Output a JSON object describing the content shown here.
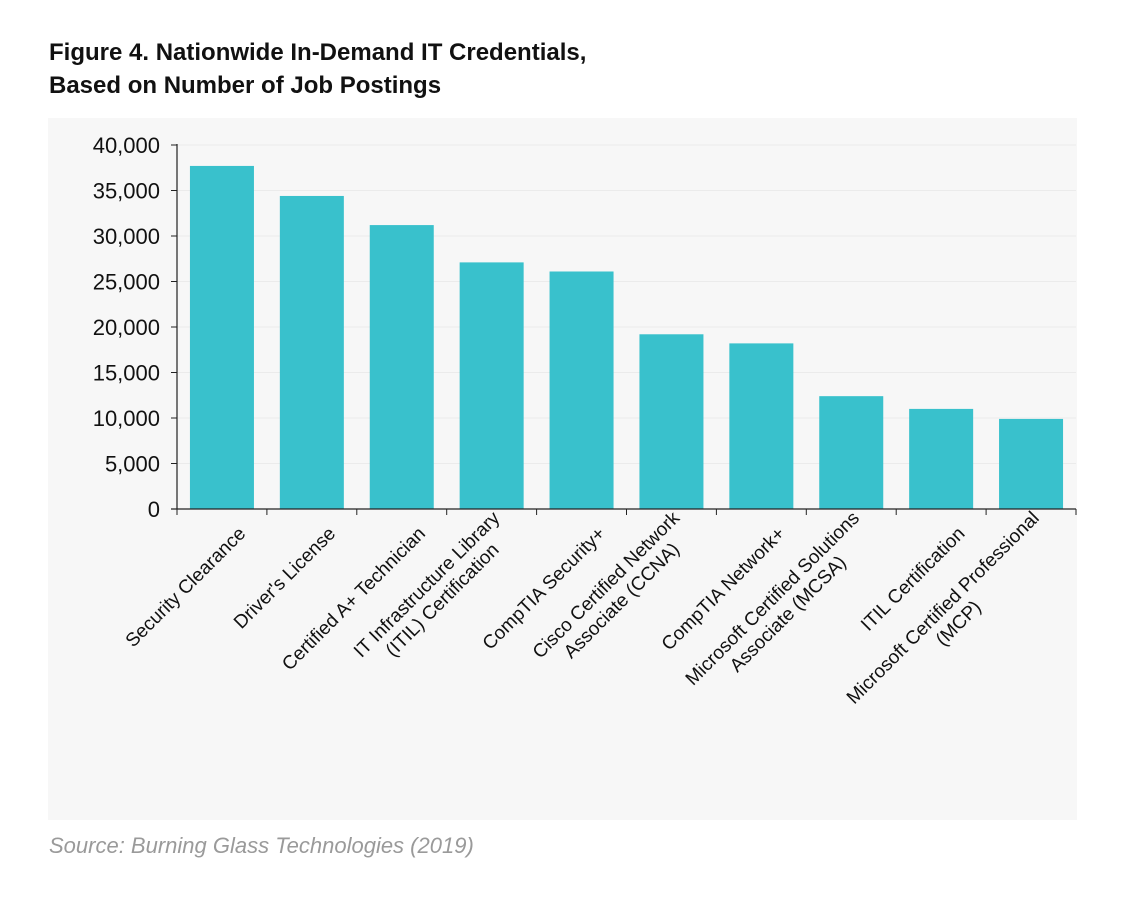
{
  "figure": {
    "title_line1": "Figure 4. Nationwide In-Demand IT Credentials,",
    "title_line2": "Based on Number of Job Postings",
    "source": "Source: Burning Glass Technologies (2019)"
  },
  "colors": {
    "bar": "#39c1cc",
    "panel_background": "#f7f7f7",
    "gridline": "#ebebeb",
    "axis": "#222222",
    "source_text": "#9a9a9a"
  },
  "chart_data": {
    "type": "bar",
    "title": "Figure 4. Nationwide In-Demand IT Credentials, Based on Number of Job Postings",
    "xlabel": "",
    "ylabel": "",
    "ylim": [
      0,
      40000
    ],
    "yticks": [
      0,
      5000,
      10000,
      15000,
      20000,
      25000,
      30000,
      35000,
      40000
    ],
    "ytick_labels": [
      "0",
      "5,000",
      "10,000",
      "15,000",
      "20,000",
      "25,000",
      "30,000",
      "35,000",
      "40,000"
    ],
    "grid": true,
    "legend": "none",
    "categories": [
      [
        "Security Clearance"
      ],
      [
        "Driver's License"
      ],
      [
        "Certified A+ Technician"
      ],
      [
        "IT Infrastructure Library",
        "(ITIL) Certification"
      ],
      [
        "CompTIA Security+"
      ],
      [
        "Cisco Certified Network",
        "Associate (CCNA)"
      ],
      [
        "CompTIA Network+"
      ],
      [
        "Microsoft Certified Solutions",
        "Associate (MCSA)"
      ],
      [
        "ITIL Certification"
      ],
      [
        "Microsoft Certified Professional",
        "(MCP)"
      ]
    ],
    "values": [
      37700,
      34400,
      31200,
      27100,
      26100,
      19200,
      18200,
      12400,
      11000,
      9900
    ]
  }
}
